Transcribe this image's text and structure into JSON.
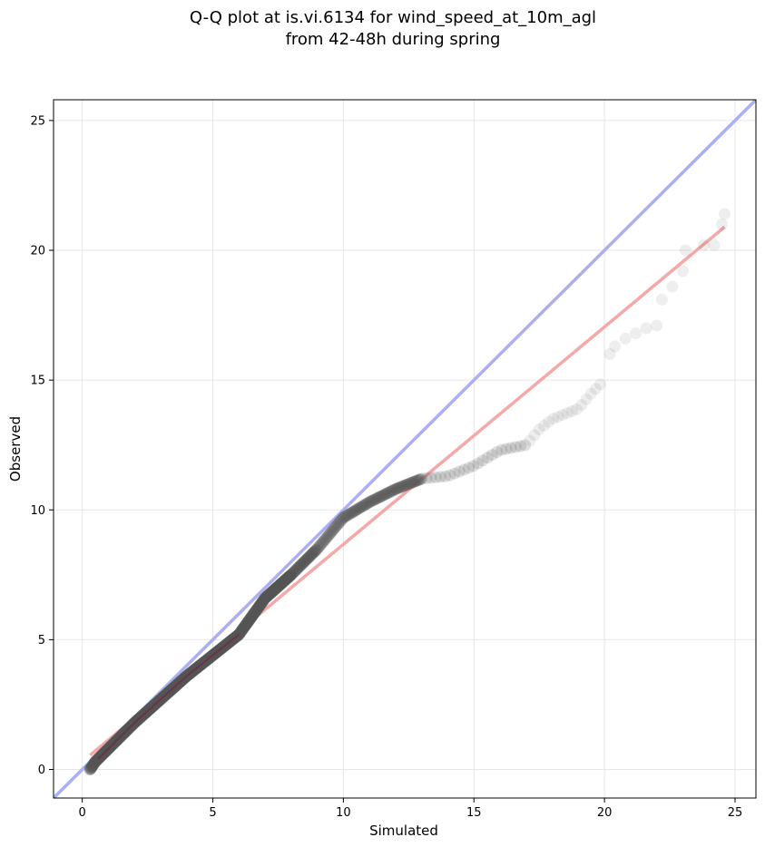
{
  "chart_data": {
    "type": "scatter",
    "title": [
      "Q-Q plot at is.vi.6134 for wind_speed_at_10m_agl",
      "from 42-48h during spring"
    ],
    "xlabel": "Simulated",
    "ylabel": "Observed",
    "xlim": [
      -1.1,
      25.8
    ],
    "ylim": [
      -1.1,
      25.8
    ],
    "xticks": [
      0,
      5,
      10,
      15,
      20,
      25
    ],
    "yticks": [
      0,
      5,
      10,
      15,
      20,
      25
    ],
    "xtick_labels": [
      "0",
      "5",
      "10",
      "15",
      "20",
      "25"
    ],
    "ytick_labels": [
      "0",
      "5",
      "10",
      "15",
      "20",
      "25"
    ],
    "grid": true,
    "colors": {
      "points": "#555555",
      "identity_line": "#aab0f2",
      "fit_line": "#f5a8a8",
      "dense_overlay": "#7a1a3a"
    },
    "identity_line": {
      "x": [
        -1.1,
        25.8
      ],
      "y": [
        -1.1,
        25.8
      ]
    },
    "fit_line": {
      "x": [
        0.3,
        24.6
      ],
      "y": [
        0.55,
        20.9
      ]
    },
    "quantile_curve": {
      "x": [
        0.3,
        0.5,
        1,
        2,
        3,
        4,
        5,
        6,
        7,
        8,
        9,
        10,
        11,
        12,
        13,
        14,
        15,
        16,
        17,
        17.5,
        18,
        18.5,
        19,
        19.5,
        20,
        20.5,
        21,
        21.5,
        22,
        22.5,
        23,
        23.5,
        24,
        24.6
      ],
      "y": [
        0.0,
        0.3,
        0.8,
        1.8,
        2.7,
        3.6,
        4.4,
        5.2,
        6.6,
        7.5,
        8.5,
        9.7,
        10.3,
        10.8,
        11.2,
        11.3,
        11.7,
        12.3,
        12.5,
        13.1,
        13.5,
        13.7,
        13.9,
        14.5,
        15.0,
        15.6,
        16.5,
        16.9,
        17.2,
        18.4,
        19.3,
        20.0,
        20.3,
        21.3
      ]
    },
    "tail_points": {
      "x": [
        20.2,
        20.4,
        20.8,
        21.2,
        21.6,
        22.0,
        22.2,
        22.6,
        23.0,
        23.1,
        23.8,
        24.2,
        24.5,
        24.6
      ],
      "y": [
        16.0,
        16.3,
        16.6,
        16.8,
        17.0,
        17.1,
        18.1,
        18.6,
        19.2,
        20.0,
        20.2,
        20.2,
        21.0,
        21.4
      ]
    }
  }
}
